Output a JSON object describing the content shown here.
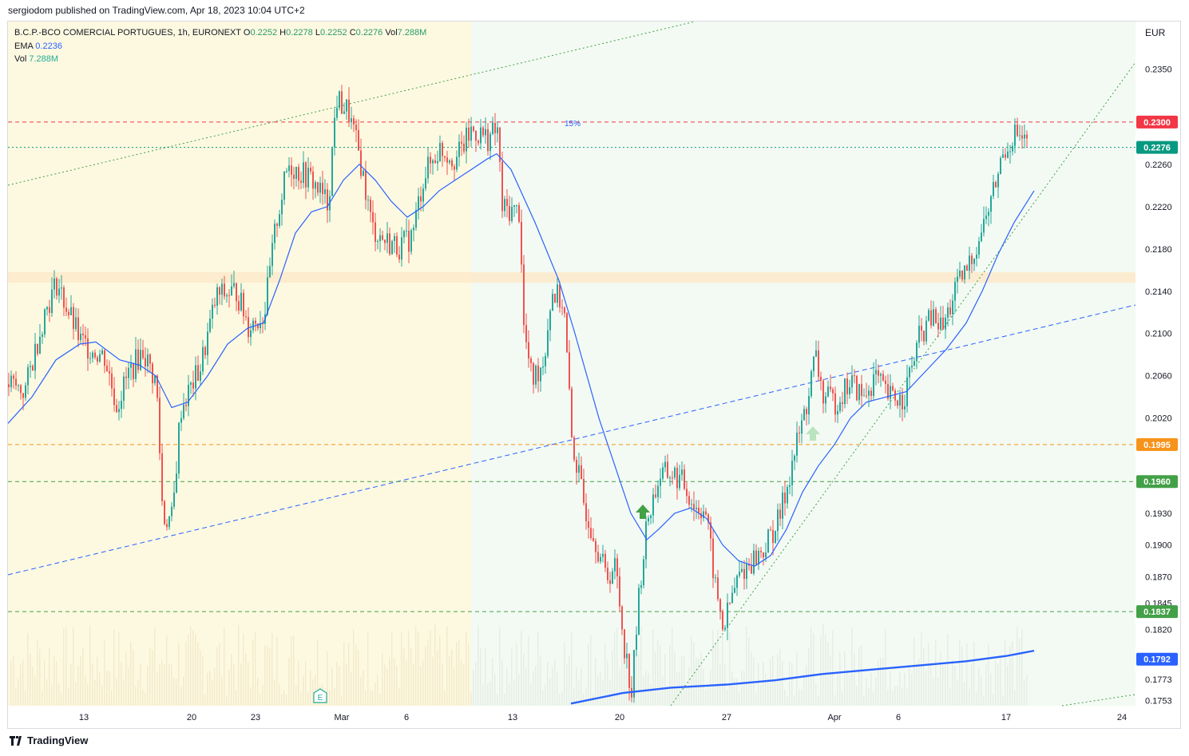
{
  "publisher": "sergiodom published on TradingView.com, Apr 18, 2023 10:04 UTC+2",
  "legend": {
    "symbol": "B.C.P.-BCO COMERCIAL PORTUGUES, 1h, EURONEXT",
    "o_label": "O",
    "o": "0.2252",
    "h_label": "H",
    "h": "0.2278",
    "l_label": "L",
    "l": "0.2252",
    "c_label": "C",
    "c": "0.2276",
    "vol_label": "Vol",
    "vol": "7.288M",
    "ema_label": "EMA",
    "ema": "0.2236",
    "vol2_label": "Vol",
    "vol2": "7.288M"
  },
  "currency": "EUR",
  "footer": "TradingView",
  "colors": {
    "up": "#26a69a",
    "down": "#ef5350",
    "ema": "#2962ff",
    "bg_yellow": "#fdf9e1",
    "bg_green": "#f3faf3"
  },
  "chart_data": {
    "type": "candlestick",
    "symbol": "B.C.P.-BCO COMERCIAL PORTUGUES",
    "interval": "1h",
    "exchange": "EURONEXT",
    "x_ticks": [
      "13",
      "20",
      "23",
      "Mar",
      "6",
      "13",
      "20",
      "27",
      "Apr",
      "6",
      "17",
      "24"
    ],
    "y_ticks": [
      0.235,
      0.226,
      0.222,
      0.218,
      0.214,
      0.21,
      0.206,
      0.202,
      0.193,
      0.19,
      0.187,
      0.1845,
      0.182,
      0.1773,
      0.1753
    ],
    "y_range": [
      0.1748,
      0.2395
    ],
    "price_labels": [
      {
        "value": "0.2300",
        "color": "#f23645"
      },
      {
        "value": "0.2276",
        "color": "#089981"
      },
      {
        "value": "0.1995",
        "color": "#f7931a"
      },
      {
        "value": "0.1960",
        "color": "#43a047"
      },
      {
        "value": "0.1837",
        "color": "#43a047"
      },
      {
        "value": "0.1792",
        "color": "#2962ff"
      }
    ],
    "horizontal_lines": [
      {
        "value": 0.23,
        "style": "dashed",
        "color": "#f23645"
      },
      {
        "value": 0.2276,
        "style": "dotted",
        "color": "#089981"
      },
      {
        "value": 0.1995,
        "style": "dashed",
        "color": "#f7931a"
      },
      {
        "value": 0.196,
        "style": "dashed",
        "color": "#43a047"
      },
      {
        "value": 0.1837,
        "style": "dashed",
        "color": "#43a047"
      }
    ],
    "annotation": "15%",
    "earnings_marker": "E",
    "price_path": [
      [
        0,
        0.2052
      ],
      [
        20,
        0.2045
      ],
      [
        45,
        0.212
      ],
      [
        60,
        0.2148
      ],
      [
        90,
        0.2092
      ],
      [
        120,
        0.2078
      ],
      [
        135,
        0.2032
      ],
      [
        150,
        0.2062
      ],
      [
        168,
        0.2084
      ],
      [
        185,
        0.2052
      ],
      [
        193,
        0.1925
      ],
      [
        205,
        0.1925
      ],
      [
        215,
        0.2028
      ],
      [
        240,
        0.2068
      ],
      [
        260,
        0.2135
      ],
      [
        285,
        0.214
      ],
      [
        300,
        0.2108
      ],
      [
        320,
        0.2118
      ],
      [
        335,
        0.2205
      ],
      [
        350,
        0.226
      ],
      [
        380,
        0.2245
      ],
      [
        400,
        0.2222
      ],
      [
        410,
        0.2322
      ],
      [
        425,
        0.231
      ],
      [
        440,
        0.2265
      ],
      [
        455,
        0.22
      ],
      [
        470,
        0.2188
      ],
      [
        490,
        0.2182
      ],
      [
        505,
        0.2192
      ],
      [
        520,
        0.225
      ],
      [
        540,
        0.2275
      ],
      [
        560,
        0.2265
      ],
      [
        580,
        0.2292
      ],
      [
        600,
        0.2285
      ],
      [
        612,
        0.2292
      ],
      [
        618,
        0.2218
      ],
      [
        640,
        0.2215
      ],
      [
        645,
        0.2105
      ],
      [
        655,
        0.2055
      ],
      [
        670,
        0.2075
      ],
      [
        680,
        0.214
      ],
      [
        695,
        0.2128
      ],
      [
        705,
        0.2
      ],
      [
        720,
        0.194
      ],
      [
        735,
        0.1905
      ],
      [
        748,
        0.187
      ],
      [
        760,
        0.188
      ],
      [
        770,
        0.181
      ],
      [
        780,
        0.176
      ],
      [
        790,
        0.186
      ],
      [
        800,
        0.1925
      ],
      [
        815,
        0.1965
      ],
      [
        830,
        0.1968
      ],
      [
        845,
        0.1958
      ],
      [
        860,
        0.1935
      ],
      [
        872,
        0.1935
      ],
      [
        885,
        0.186
      ],
      [
        895,
        0.182
      ],
      [
        905,
        0.185
      ],
      [
        915,
        0.1872
      ],
      [
        930,
        0.1885
      ],
      [
        945,
        0.1895
      ],
      [
        965,
        0.1925
      ],
      [
        985,
        0.199
      ],
      [
        1000,
        0.2035
      ],
      [
        1010,
        0.208
      ],
      [
        1020,
        0.204
      ],
      [
        1035,
        0.2035
      ],
      [
        1055,
        0.2055
      ],
      [
        1070,
        0.2038
      ],
      [
        1085,
        0.206
      ],
      [
        1100,
        0.204
      ],
      [
        1120,
        0.2038
      ],
      [
        1140,
        0.2095
      ],
      [
        1155,
        0.2115
      ],
      [
        1170,
        0.2105
      ],
      [
        1185,
        0.214
      ],
      [
        1200,
        0.216
      ],
      [
        1215,
        0.219
      ],
      [
        1230,
        0.2225
      ],
      [
        1245,
        0.227
      ],
      [
        1260,
        0.229
      ],
      [
        1272,
        0.228
      ],
      [
        1285,
        0.227
      ]
    ],
    "ema_path": [
      [
        0,
        0.2015
      ],
      [
        30,
        0.204
      ],
      [
        60,
        0.2075
      ],
      [
        90,
        0.209
      ],
      [
        110,
        0.2092
      ],
      [
        140,
        0.2075
      ],
      [
        165,
        0.207
      ],
      [
        185,
        0.206
      ],
      [
        205,
        0.203
      ],
      [
        225,
        0.2035
      ],
      [
        250,
        0.206
      ],
      [
        275,
        0.209
      ],
      [
        300,
        0.2105
      ],
      [
        320,
        0.211
      ],
      [
        340,
        0.215
      ],
      [
        360,
        0.2195
      ],
      [
        380,
        0.2215
      ],
      [
        400,
        0.222
      ],
      [
        420,
        0.2245
      ],
      [
        440,
        0.226
      ],
      [
        460,
        0.2245
      ],
      [
        480,
        0.2225
      ],
      [
        500,
        0.221
      ],
      [
        520,
        0.222
      ],
      [
        540,
        0.2235
      ],
      [
        560,
        0.2245
      ],
      [
        580,
        0.2255
      ],
      [
        600,
        0.2265
      ],
      [
        612,
        0.227
      ],
      [
        630,
        0.2255
      ],
      [
        660,
        0.2205
      ],
      [
        690,
        0.215
      ],
      [
        710,
        0.21
      ],
      [
        740,
        0.202
      ],
      [
        760,
        0.1975
      ],
      [
        780,
        0.193
      ],
      [
        800,
        0.1905
      ],
      [
        815,
        0.1915
      ],
      [
        835,
        0.193
      ],
      [
        855,
        0.1935
      ],
      [
        875,
        0.1925
      ],
      [
        895,
        0.19
      ],
      [
        915,
        0.1885
      ],
      [
        935,
        0.188
      ],
      [
        955,
        0.189
      ],
      [
        975,
        0.1915
      ],
      [
        995,
        0.195
      ],
      [
        1015,
        0.1975
      ],
      [
        1035,
        0.1995
      ],
      [
        1055,
        0.202
      ],
      [
        1075,
        0.2035
      ],
      [
        1100,
        0.204
      ],
      [
        1125,
        0.2045
      ],
      [
        1150,
        0.2065
      ],
      [
        1175,
        0.2085
      ],
      [
        1200,
        0.211
      ],
      [
        1220,
        0.214
      ],
      [
        1240,
        0.2175
      ],
      [
        1260,
        0.2205
      ],
      [
        1285,
        0.2235
      ]
    ],
    "volume_ma_path": [
      [
        705,
        0.175
      ],
      [
        770,
        0.176
      ],
      [
        830,
        0.1765
      ],
      [
        900,
        0.1768
      ],
      [
        960,
        0.1772
      ],
      [
        1020,
        0.1778
      ],
      [
        1080,
        0.1782
      ],
      [
        1140,
        0.1786
      ],
      [
        1200,
        0.179
      ],
      [
        1250,
        0.1795
      ],
      [
        1285,
        0.18
      ]
    ]
  }
}
